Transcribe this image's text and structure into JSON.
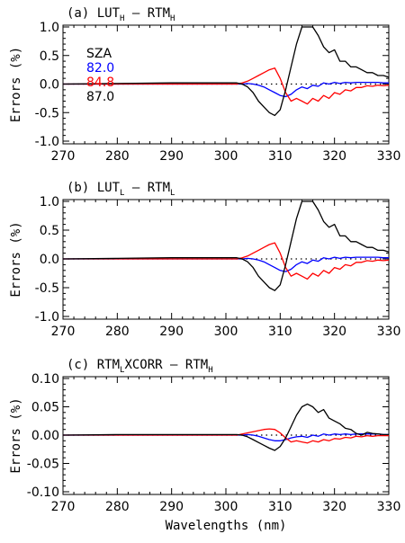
{
  "chart_data": [
    {
      "type": "line",
      "title": "(a) LUT_H – RTM_H",
      "title_parts": {
        "prefix": "(a) ",
        "a": "LUT",
        "a_sub": "H",
        "op": " – ",
        "b": "RTM",
        "b_sub": "H"
      },
      "ylabel": "Errors (%)",
      "xlabel": "",
      "xlim": [
        270,
        330
      ],
      "ylim": [
        -1.0,
        1.0
      ],
      "xticks": [
        "270",
        "280",
        "290",
        "300",
        "310",
        "320",
        "330"
      ],
      "yticks": [
        "1.0",
        "0.5",
        "0.0",
        "-0.5",
        "-1.0"
      ],
      "ytick_values": [
        1.0,
        0.5,
        0.0,
        -0.5,
        -1.0
      ],
      "zero_line": "dotted",
      "legend": {
        "title": "SZA",
        "entries": [
          {
            "label": "82.0",
            "color": "#0000ff"
          },
          {
            "label": "84.8",
            "color": "#ff0000"
          },
          {
            "label": "87.0",
            "color": "#000000"
          }
        ],
        "placement": "top-left"
      },
      "series": [
        {
          "color": "#0000ff",
          "x": [
            270,
            280,
            290,
            300,
            302,
            303,
            304,
            305,
            306,
            307,
            308,
            309,
            310,
            311,
            312,
            313,
            314,
            315,
            316,
            317,
            318,
            319,
            320,
            321,
            322,
            323,
            324,
            325,
            326,
            327,
            328,
            329,
            330
          ],
          "y": [
            0,
            0,
            0,
            0,
            0,
            0,
            0.01,
            0,
            -0.02,
            -0.05,
            -0.1,
            -0.15,
            -0.2,
            -0.22,
            -0.18,
            -0.1,
            -0.05,
            -0.08,
            -0.02,
            -0.04,
            0.02,
            0,
            0.03,
            0.01,
            0.03,
            0.02,
            0.03,
            0.03,
            0.03,
            0.03,
            0.03,
            0.02,
            0.02
          ]
        },
        {
          "color": "#ff0000",
          "x": [
            270,
            280,
            290,
            300,
            302,
            303,
            304,
            305,
            306,
            307,
            308,
            309,
            310,
            311,
            312,
            313,
            314,
            315,
            316,
            317,
            318,
            319,
            320,
            321,
            322,
            323,
            324,
            325,
            326,
            327,
            328,
            329,
            330
          ],
          "y": [
            0,
            0,
            0,
            0,
            0,
            0.02,
            0.05,
            0.1,
            0.15,
            0.2,
            0.25,
            0.28,
            0.1,
            -0.15,
            -0.3,
            -0.25,
            -0.3,
            -0.35,
            -0.25,
            -0.3,
            -0.2,
            -0.25,
            -0.15,
            -0.18,
            -0.1,
            -0.12,
            -0.06,
            -0.06,
            -0.03,
            -0.04,
            -0.02,
            -0.03,
            -0.02
          ]
        },
        {
          "color": "#000000",
          "x": [
            270,
            280,
            290,
            300,
            302,
            303,
            304,
            305,
            306,
            307,
            308,
            309,
            310,
            311,
            312,
            313,
            314,
            315,
            316,
            317,
            318,
            319,
            320,
            321,
            322,
            323,
            324,
            325,
            326,
            327,
            328,
            329,
            330
          ],
          "y": [
            0,
            0.01,
            0.02,
            0.02,
            0.02,
            0,
            -0.05,
            -0.15,
            -0.3,
            -0.4,
            -0.5,
            -0.55,
            -0.45,
            -0.1,
            0.3,
            0.7,
            1.0,
            1.0,
            1.0,
            0.85,
            0.65,
            0.55,
            0.6,
            0.4,
            0.4,
            0.3,
            0.3,
            0.25,
            0.2,
            0.2,
            0.15,
            0.15,
            0.12
          ]
        }
      ]
    },
    {
      "type": "line",
      "title": "(b) LUT_L – RTM_L",
      "title_parts": {
        "prefix": "(b) ",
        "a": "LUT",
        "a_sub": "L",
        "op": " – ",
        "b": "RTM",
        "b_sub": "L"
      },
      "ylabel": "Errors (%)",
      "xlabel": "",
      "xlim": [
        270,
        330
      ],
      "ylim": [
        -1.0,
        1.0
      ],
      "xticks": [
        "270",
        "280",
        "290",
        "300",
        "310",
        "320",
        "330"
      ],
      "yticks": [
        "1.0",
        "0.5",
        "0.0",
        "-0.5",
        "-1.0"
      ],
      "ytick_values": [
        1.0,
        0.5,
        0.0,
        -0.5,
        -1.0
      ],
      "zero_line": "dotted",
      "series": [
        {
          "color": "#0000ff",
          "x": [
            270,
            280,
            290,
            300,
            302,
            303,
            304,
            305,
            306,
            307,
            308,
            309,
            310,
            311,
            312,
            313,
            314,
            315,
            316,
            317,
            318,
            319,
            320,
            321,
            322,
            323,
            324,
            325,
            326,
            327,
            328,
            329,
            330
          ],
          "y": [
            0,
            0,
            0,
            0,
            0,
            0,
            0.01,
            0,
            -0.02,
            -0.05,
            -0.1,
            -0.15,
            -0.2,
            -0.22,
            -0.18,
            -0.1,
            -0.05,
            -0.08,
            -0.02,
            -0.04,
            0.02,
            0,
            0.03,
            0.01,
            0.03,
            0.02,
            0.03,
            0.03,
            0.03,
            0.03,
            0.03,
            0.02,
            0.02
          ]
        },
        {
          "color": "#ff0000",
          "x": [
            270,
            280,
            290,
            300,
            302,
            303,
            304,
            305,
            306,
            307,
            308,
            309,
            310,
            311,
            312,
            313,
            314,
            315,
            316,
            317,
            318,
            319,
            320,
            321,
            322,
            323,
            324,
            325,
            326,
            327,
            328,
            329,
            330
          ],
          "y": [
            0,
            0,
            0,
            0,
            0,
            0.02,
            0.05,
            0.1,
            0.15,
            0.2,
            0.25,
            0.28,
            0.1,
            -0.15,
            -0.3,
            -0.25,
            -0.3,
            -0.35,
            -0.25,
            -0.3,
            -0.2,
            -0.25,
            -0.15,
            -0.18,
            -0.1,
            -0.12,
            -0.06,
            -0.06,
            -0.03,
            -0.04,
            -0.02,
            -0.03,
            -0.02
          ]
        },
        {
          "color": "#000000",
          "x": [
            270,
            280,
            290,
            300,
            302,
            303,
            304,
            305,
            306,
            307,
            308,
            309,
            310,
            311,
            312,
            313,
            314,
            315,
            316,
            317,
            318,
            319,
            320,
            321,
            322,
            323,
            324,
            325,
            326,
            327,
            328,
            329,
            330
          ],
          "y": [
            0,
            0.01,
            0.02,
            0.02,
            0.02,
            0,
            -0.05,
            -0.15,
            -0.3,
            -0.4,
            -0.5,
            -0.55,
            -0.45,
            -0.1,
            0.3,
            0.7,
            1.0,
            1.0,
            1.0,
            0.85,
            0.65,
            0.55,
            0.6,
            0.4,
            0.4,
            0.3,
            0.3,
            0.25,
            0.2,
            0.2,
            0.15,
            0.15,
            0.12
          ]
        }
      ]
    },
    {
      "type": "line",
      "title": "(c) RTM_LXCORR – RTM_H",
      "title_parts": {
        "prefix": "(c) ",
        "a": "RTM",
        "a_sub": "L",
        "a_suffix": "XCORR",
        "op": " – ",
        "b": "RTM",
        "b_sub": "H"
      },
      "ylabel": "Errors (%)",
      "xlabel": "Wavelengths (nm)",
      "xlim": [
        270,
        330
      ],
      "ylim": [
        -0.1,
        0.1
      ],
      "xticks": [
        "270",
        "280",
        "290",
        "300",
        "310",
        "320",
        "330"
      ],
      "yticks": [
        "0.10",
        "0.05",
        "0.00",
        "-0.05",
        "-0.10"
      ],
      "ytick_values": [
        0.1,
        0.05,
        0.0,
        -0.05,
        -0.1
      ],
      "zero_line": "dotted",
      "series": [
        {
          "color": "#0000ff",
          "x": [
            270,
            280,
            290,
            300,
            302,
            303,
            304,
            305,
            306,
            307,
            308,
            309,
            310,
            311,
            312,
            313,
            314,
            315,
            316,
            317,
            318,
            319,
            320,
            321,
            322,
            323,
            324,
            325,
            326,
            327,
            328,
            329,
            330
          ],
          "y": [
            0,
            0,
            0,
            0,
            0,
            0,
            0.001,
            0,
            -0.002,
            -0.005,
            -0.008,
            -0.01,
            -0.01,
            -0.008,
            -0.005,
            -0.003,
            -0.002,
            -0.004,
            0,
            -0.002,
            0.002,
            0,
            0.002,
            0.001,
            0.002,
            0.001,
            0.002,
            0.002,
            0.002,
            0.002,
            0.002,
            0.001,
            0.001
          ]
        },
        {
          "color": "#ff0000",
          "x": [
            270,
            280,
            290,
            300,
            302,
            303,
            304,
            305,
            306,
            307,
            308,
            309,
            310,
            311,
            312,
            313,
            314,
            315,
            316,
            317,
            318,
            319,
            320,
            321,
            322,
            323,
            324,
            325,
            326,
            327,
            328,
            329,
            330
          ],
          "y": [
            0,
            0,
            0,
            0,
            0,
            0.002,
            0.004,
            0.006,
            0.008,
            0.01,
            0.011,
            0.01,
            0.004,
            -0.005,
            -0.012,
            -0.01,
            -0.012,
            -0.014,
            -0.01,
            -0.012,
            -0.008,
            -0.01,
            -0.006,
            -0.007,
            -0.004,
            -0.005,
            -0.002,
            -0.003,
            -0.001,
            -0.002,
            -0.001,
            -0.001,
            -0.001
          ]
        },
        {
          "color": "#000000",
          "x": [
            270,
            280,
            290,
            300,
            302,
            303,
            304,
            305,
            306,
            307,
            308,
            309,
            310,
            311,
            312,
            313,
            314,
            315,
            316,
            317,
            318,
            319,
            320,
            321,
            322,
            323,
            324,
            325,
            326,
            327,
            328,
            329,
            330
          ],
          "y": [
            0,
            0.001,
            0.001,
            0.001,
            0.001,
            0,
            -0.003,
            -0.008,
            -0.013,
            -0.018,
            -0.023,
            -0.027,
            -0.02,
            -0.005,
            0.015,
            0.035,
            0.05,
            0.055,
            0.05,
            0.04,
            0.045,
            0.03,
            0.025,
            0.02,
            0.012,
            0.01,
            0.003,
            0,
            0.005,
            0.003,
            0.002,
            0.001,
            0.001
          ]
        }
      ]
    }
  ]
}
